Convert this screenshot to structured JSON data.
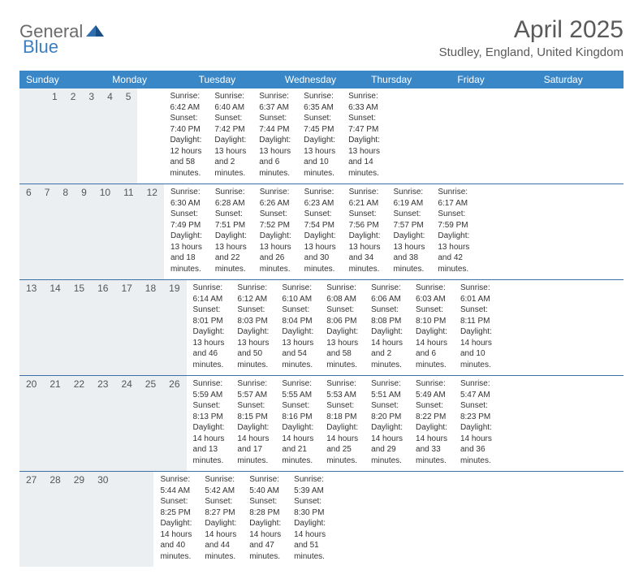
{
  "logo": {
    "text1": "General",
    "text2": "Blue"
  },
  "title": "April 2025",
  "subtitle": "Studley, England, United Kingdom",
  "colors": {
    "header_bg": "#3a87c7",
    "header_text": "#ffffff",
    "daynum_bg": "#eceff1",
    "week_border": "#3a6fa8",
    "text": "#333333",
    "title_text": "#5a5a5a",
    "logo_gray": "#6b6b6b",
    "logo_blue": "#3a7fc4"
  },
  "day_names": [
    "Sunday",
    "Monday",
    "Tuesday",
    "Wednesday",
    "Thursday",
    "Friday",
    "Saturday"
  ],
  "weeks": [
    [
      {
        "n": "",
        "sr": "",
        "ss": "",
        "dl": ""
      },
      {
        "n": "",
        "sr": "",
        "ss": "",
        "dl": ""
      },
      {
        "n": "1",
        "sr": "Sunrise: 6:42 AM",
        "ss": "Sunset: 7:40 PM",
        "dl": "Daylight: 12 hours and 58 minutes."
      },
      {
        "n": "2",
        "sr": "Sunrise: 6:40 AM",
        "ss": "Sunset: 7:42 PM",
        "dl": "Daylight: 13 hours and 2 minutes."
      },
      {
        "n": "3",
        "sr": "Sunrise: 6:37 AM",
        "ss": "Sunset: 7:44 PM",
        "dl": "Daylight: 13 hours and 6 minutes."
      },
      {
        "n": "4",
        "sr": "Sunrise: 6:35 AM",
        "ss": "Sunset: 7:45 PM",
        "dl": "Daylight: 13 hours and 10 minutes."
      },
      {
        "n": "5",
        "sr": "Sunrise: 6:33 AM",
        "ss": "Sunset: 7:47 PM",
        "dl": "Daylight: 13 hours and 14 minutes."
      }
    ],
    [
      {
        "n": "6",
        "sr": "Sunrise: 6:30 AM",
        "ss": "Sunset: 7:49 PM",
        "dl": "Daylight: 13 hours and 18 minutes."
      },
      {
        "n": "7",
        "sr": "Sunrise: 6:28 AM",
        "ss": "Sunset: 7:51 PM",
        "dl": "Daylight: 13 hours and 22 minutes."
      },
      {
        "n": "8",
        "sr": "Sunrise: 6:26 AM",
        "ss": "Sunset: 7:52 PM",
        "dl": "Daylight: 13 hours and 26 minutes."
      },
      {
        "n": "9",
        "sr": "Sunrise: 6:23 AM",
        "ss": "Sunset: 7:54 PM",
        "dl": "Daylight: 13 hours and 30 minutes."
      },
      {
        "n": "10",
        "sr": "Sunrise: 6:21 AM",
        "ss": "Sunset: 7:56 PM",
        "dl": "Daylight: 13 hours and 34 minutes."
      },
      {
        "n": "11",
        "sr": "Sunrise: 6:19 AM",
        "ss": "Sunset: 7:57 PM",
        "dl": "Daylight: 13 hours and 38 minutes."
      },
      {
        "n": "12",
        "sr": "Sunrise: 6:17 AM",
        "ss": "Sunset: 7:59 PM",
        "dl": "Daylight: 13 hours and 42 minutes."
      }
    ],
    [
      {
        "n": "13",
        "sr": "Sunrise: 6:14 AM",
        "ss": "Sunset: 8:01 PM",
        "dl": "Daylight: 13 hours and 46 minutes."
      },
      {
        "n": "14",
        "sr": "Sunrise: 6:12 AM",
        "ss": "Sunset: 8:03 PM",
        "dl": "Daylight: 13 hours and 50 minutes."
      },
      {
        "n": "15",
        "sr": "Sunrise: 6:10 AM",
        "ss": "Sunset: 8:04 PM",
        "dl": "Daylight: 13 hours and 54 minutes."
      },
      {
        "n": "16",
        "sr": "Sunrise: 6:08 AM",
        "ss": "Sunset: 8:06 PM",
        "dl": "Daylight: 13 hours and 58 minutes."
      },
      {
        "n": "17",
        "sr": "Sunrise: 6:06 AM",
        "ss": "Sunset: 8:08 PM",
        "dl": "Daylight: 14 hours and 2 minutes."
      },
      {
        "n": "18",
        "sr": "Sunrise: 6:03 AM",
        "ss": "Sunset: 8:10 PM",
        "dl": "Daylight: 14 hours and 6 minutes."
      },
      {
        "n": "19",
        "sr": "Sunrise: 6:01 AM",
        "ss": "Sunset: 8:11 PM",
        "dl": "Daylight: 14 hours and 10 minutes."
      }
    ],
    [
      {
        "n": "20",
        "sr": "Sunrise: 5:59 AM",
        "ss": "Sunset: 8:13 PM",
        "dl": "Daylight: 14 hours and 13 minutes."
      },
      {
        "n": "21",
        "sr": "Sunrise: 5:57 AM",
        "ss": "Sunset: 8:15 PM",
        "dl": "Daylight: 14 hours and 17 minutes."
      },
      {
        "n": "22",
        "sr": "Sunrise: 5:55 AM",
        "ss": "Sunset: 8:16 PM",
        "dl": "Daylight: 14 hours and 21 minutes."
      },
      {
        "n": "23",
        "sr": "Sunrise: 5:53 AM",
        "ss": "Sunset: 8:18 PM",
        "dl": "Daylight: 14 hours and 25 minutes."
      },
      {
        "n": "24",
        "sr": "Sunrise: 5:51 AM",
        "ss": "Sunset: 8:20 PM",
        "dl": "Daylight: 14 hours and 29 minutes."
      },
      {
        "n": "25",
        "sr": "Sunrise: 5:49 AM",
        "ss": "Sunset: 8:22 PM",
        "dl": "Daylight: 14 hours and 33 minutes."
      },
      {
        "n": "26",
        "sr": "Sunrise: 5:47 AM",
        "ss": "Sunset: 8:23 PM",
        "dl": "Daylight: 14 hours and 36 minutes."
      }
    ],
    [
      {
        "n": "27",
        "sr": "Sunrise: 5:44 AM",
        "ss": "Sunset: 8:25 PM",
        "dl": "Daylight: 14 hours and 40 minutes."
      },
      {
        "n": "28",
        "sr": "Sunrise: 5:42 AM",
        "ss": "Sunset: 8:27 PM",
        "dl": "Daylight: 14 hours and 44 minutes."
      },
      {
        "n": "29",
        "sr": "Sunrise: 5:40 AM",
        "ss": "Sunset: 8:28 PM",
        "dl": "Daylight: 14 hours and 47 minutes."
      },
      {
        "n": "30",
        "sr": "Sunrise: 5:39 AM",
        "ss": "Sunset: 8:30 PM",
        "dl": "Daylight: 14 hours and 51 minutes."
      },
      {
        "n": "",
        "sr": "",
        "ss": "",
        "dl": ""
      },
      {
        "n": "",
        "sr": "",
        "ss": "",
        "dl": ""
      },
      {
        "n": "",
        "sr": "",
        "ss": "",
        "dl": ""
      }
    ]
  ]
}
